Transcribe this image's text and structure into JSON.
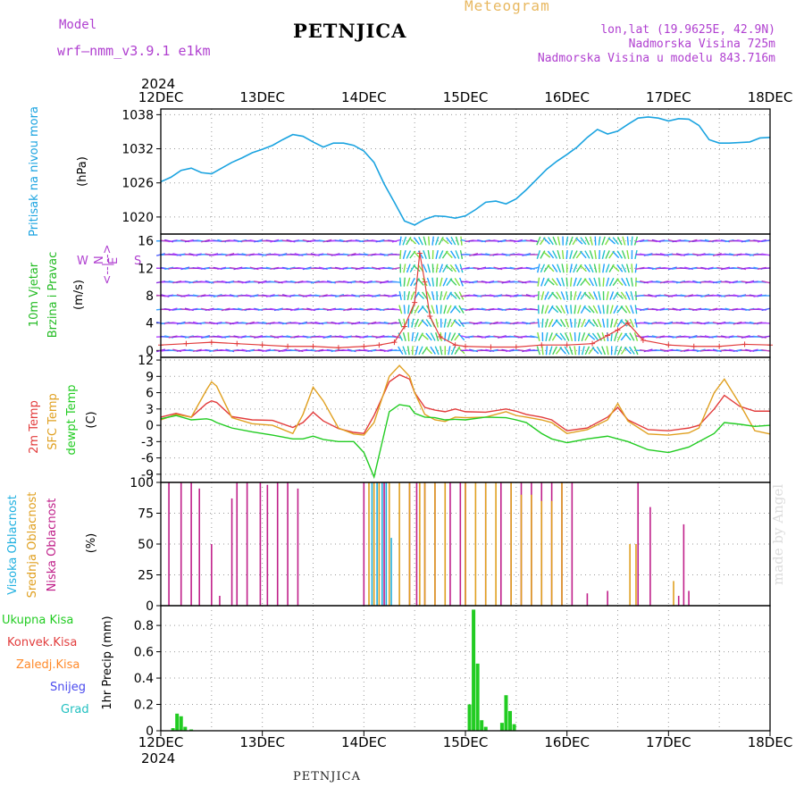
{
  "header": {
    "model_label": "Model",
    "model_name": "wrf–nmm_v3.9.1  e1km",
    "title": "PETNJICA",
    "subtitle": "Meteogram",
    "lonlat": "lon,lat (19.9625E, 42.9N)",
    "altitude": "Nadmorska Visina 725m",
    "model_altitude": "Nadmorska Visina u modelu 843.716m"
  },
  "footer": {
    "station": "PETNJICA",
    "watermark": "made by Angel"
  },
  "colors": {
    "pressure": "#1aa3e0",
    "wind_speed": "#e23c3c",
    "wind_label_green": "#22bb22",
    "temp_2m": "#e23c3c",
    "temp_sfc": "#e0a020",
    "temp_dew": "#22cc22",
    "cloud_high": "#20b0e0",
    "cloud_mid": "#e0a020",
    "cloud_low": "#c0208a",
    "rain_total": "#22cc22",
    "rain_conv": "#e23c3c",
    "rain_frozen": "#ff8a2a",
    "snow": "#4a4aee",
    "hail": "#20c0c0",
    "header_purple": "#b040d0",
    "header_orange": "#e8b860"
  },
  "time_axis": {
    "year": "2024",
    "labels": [
      "12DEC",
      "13DEC",
      "14DEC",
      "15DEC",
      "16DEC",
      "17DEC",
      "18DEC"
    ]
  },
  "chart_data": [
    {
      "type": "line",
      "panel": "pressure",
      "ylabel": "Pritisak na nivou mora",
      "unit": "(hPa)",
      "ylim": [
        1017,
        1039
      ],
      "yticks": [
        "1020",
        "1026",
        "1032",
        "1038"
      ],
      "x_unit": "days from 12DEC 00",
      "series": [
        {
          "x": [
            0,
            0.1,
            0.2,
            0.3,
            0.4,
            0.5,
            0.6,
            0.7,
            0.8,
            0.9,
            1.0,
            1.1,
            1.2,
            1.3,
            1.4,
            1.5,
            1.6,
            1.7,
            1.8,
            1.9,
            2.0,
            2.1,
            2.2,
            2.3,
            2.4,
            2.5,
            2.6,
            2.7,
            2.8,
            2.9,
            3.0,
            3.1,
            3.2,
            3.3,
            3.4,
            3.5,
            3.6,
            3.7,
            3.8,
            3.9,
            4.0,
            4.1,
            4.2,
            4.3,
            4.4,
            4.5,
            4.6,
            4.7,
            4.8,
            4.9,
            5.0,
            5.1,
            5.2,
            5.3,
            5.4,
            5.5,
            5.6,
            5.7,
            5.8,
            5.9,
            6.0
          ],
          "values": [
            1026.2,
            1027.0,
            1028.2,
            1028.6,
            1027.8,
            1027.6,
            1028.6,
            1029.6,
            1030.4,
            1031.3,
            1031.9,
            1032.6,
            1033.6,
            1034.5,
            1034.2,
            1033.2,
            1032.3,
            1033.0,
            1033.0,
            1032.6,
            1031.6,
            1029.6,
            1025.8,
            1022.6,
            1019.3,
            1018.6,
            1019.6,
            1020.2,
            1020.1,
            1019.8,
            1020.2,
            1021.3,
            1022.6,
            1022.8,
            1022.3,
            1023.2,
            1024.8,
            1026.6,
            1028.4,
            1029.8,
            1031.0,
            1032.3,
            1034.0,
            1035.4,
            1034.6,
            1035.1,
            1036.3,
            1037.4,
            1037.6,
            1037.4,
            1036.9,
            1037.3,
            1037.2,
            1036.1,
            1033.6,
            1033.0,
            1033.0,
            1033.1,
            1033.2,
            1033.9,
            1034.0
          ]
        }
      ]
    },
    {
      "type": "line",
      "panel": "wind",
      "ylabel": "10m Vjetar Brzina i Pravac",
      "unit": "(m/s)",
      "ylim": [
        -1,
        17
      ],
      "yticks": [
        "0",
        "4",
        "8",
        "12",
        "16"
      ],
      "compass": [
        "N",
        "<--|-->",
        "E",
        "W",
        "S"
      ],
      "x_unit": "days from 12DEC 00",
      "series": [
        {
          "name": "speed",
          "x": [
            0,
            0.25,
            0.5,
            0.75,
            1.0,
            1.25,
            1.5,
            1.75,
            2.0,
            2.15,
            2.3,
            2.4,
            2.5,
            2.55,
            2.6,
            2.65,
            2.75,
            2.9,
            3.0,
            3.25,
            3.5,
            3.75,
            4.0,
            4.25,
            4.4,
            4.5,
            4.6,
            4.75,
            5.0,
            5.25,
            5.5,
            5.75,
            6.0
          ],
          "values": [
            0.8,
            1.0,
            1.2,
            1.0,
            0.8,
            0.6,
            0.6,
            0.4,
            0.6,
            0.8,
            1.2,
            3.5,
            7.0,
            14.2,
            10.0,
            5.0,
            2.0,
            0.8,
            0.6,
            0.5,
            0.5,
            0.8,
            0.8,
            1.0,
            2.2,
            3.0,
            4.0,
            1.5,
            0.8,
            0.6,
            0.6,
            0.9,
            0.8
          ]
        }
      ]
    },
    {
      "type": "line",
      "panel": "temperature",
      "ylabel": [
        "2m Temp",
        "SFC Temp",
        "dewpt Temp"
      ],
      "unit": "(C)",
      "ylim": [
        -10.5,
        12.5
      ],
      "yticks": [
        "-9",
        "-6",
        "-3",
        "0",
        "3",
        "6",
        "9",
        "12"
      ],
      "x": [
        0,
        0.15,
        0.3,
        0.45,
        0.5,
        0.55,
        0.7,
        0.9,
        1.1,
        1.3,
        1.4,
        1.5,
        1.6,
        1.75,
        1.9,
        2.0,
        2.1,
        2.25,
        2.35,
        2.45,
        2.5,
        2.6,
        2.7,
        2.8,
        2.9,
        3.0,
        3.2,
        3.4,
        3.5,
        3.6,
        3.75,
        3.85,
        4.0,
        4.2,
        4.4,
        4.5,
        4.6,
        4.8,
        5.0,
        5.2,
        5.3,
        5.45,
        5.55,
        5.7,
        5.85,
        6.0
      ],
      "series": [
        {
          "name": "2m",
          "values": [
            1.5,
            2.2,
            1.5,
            4.0,
            4.5,
            4.2,
            1.6,
            1.0,
            0.9,
            -0.4,
            0.5,
            2.4,
            0.8,
            -0.6,
            -1.3,
            -1.5,
            1.8,
            8.0,
            9.3,
            8.5,
            6.0,
            3.3,
            2.8,
            2.5,
            3.0,
            2.5,
            2.4,
            3.0,
            2.6,
            2.0,
            1.5,
            1.0,
            -1.0,
            -0.5,
            1.5,
            3.3,
            1.0,
            -0.8,
            -1.0,
            -0.5,
            0.0,
            3.0,
            5.5,
            3.5,
            2.6,
            2.6
          ]
        },
        {
          "name": "sfc",
          "values": [
            1.0,
            2.0,
            1.5,
            6.5,
            8.0,
            7.2,
            1.4,
            0.3,
            0.0,
            -1.5,
            2.0,
            7.0,
            4.5,
            -0.5,
            -1.6,
            -1.8,
            0.5,
            9.0,
            11.0,
            9.0,
            6.0,
            2.0,
            1.0,
            0.7,
            1.5,
            1.4,
            1.5,
            2.5,
            1.8,
            1.5,
            1.0,
            0.5,
            -1.5,
            -0.8,
            1.0,
            4.0,
            0.8,
            -1.6,
            -1.8,
            -1.4,
            -0.5,
            6.0,
            8.5,
            4.0,
            -1.0,
            -1.6
          ]
        },
        {
          "name": "dew",
          "values": [
            1.2,
            1.8,
            1.0,
            1.2,
            1.0,
            0.5,
            -0.5,
            -1.2,
            -1.8,
            -2.5,
            -2.5,
            -2.0,
            -2.6,
            -3.0,
            -3.0,
            -5.0,
            -9.5,
            2.5,
            3.8,
            3.5,
            2.2,
            1.5,
            1.4,
            1.0,
            1.1,
            1.0,
            1.5,
            1.4,
            1.0,
            0.5,
            -1.5,
            -2.5,
            -3.2,
            -2.5,
            -2.0,
            -2.5,
            -3.0,
            -4.5,
            -5.0,
            -4.0,
            -3.0,
            -1.5,
            0.5,
            0.2,
            -0.2,
            0.0
          ]
        }
      ]
    },
    {
      "type": "bar",
      "panel": "cloud",
      "ylabel": [
        "Visoka Oblacnost",
        "Srednja Oblacnost",
        "Niska Oblacnost"
      ],
      "unit": "(%)",
      "ylim": [
        0,
        100
      ],
      "yticks": [
        "0",
        "25",
        "50",
        "75",
        "100"
      ],
      "series": [
        {
          "name": "low",
          "x": [
            0.08,
            0.2,
            0.3,
            0.38,
            0.5,
            0.58,
            0.7,
            0.75,
            0.85,
            0.98,
            1.05,
            1.15,
            1.25,
            1.35,
            2.0,
            2.2,
            2.45,
            2.52,
            2.6,
            2.7,
            2.85,
            2.95,
            3.0,
            3.2,
            3.35,
            3.45,
            3.55,
            3.65,
            3.75,
            3.85,
            3.95,
            4.05,
            4.2,
            4.4,
            4.7,
            4.82,
            5.1,
            5.15,
            5.2
          ],
          "values": [
            100,
            100,
            100,
            95,
            50,
            8,
            87,
            100,
            100,
            100,
            98,
            100,
            100,
            95,
            100,
            100,
            100,
            100,
            100,
            100,
            100,
            100,
            100,
            100,
            100,
            100,
            100,
            100,
            100,
            100,
            100,
            100,
            10,
            12,
            100,
            80,
            8,
            66,
            12
          ]
        },
        {
          "name": "mid",
          "x": [
            2.05,
            2.1,
            2.15,
            2.25,
            2.35,
            2.45,
            2.55,
            2.6,
            2.7,
            2.8,
            3.0,
            3.1,
            3.2,
            3.3,
            3.45,
            3.55,
            3.65,
            3.75,
            3.85,
            3.95,
            4.62,
            4.68,
            5.05
          ],
          "values": [
            100,
            100,
            100,
            100,
            100,
            100,
            100,
            100,
            100,
            100,
            100,
            100,
            100,
            100,
            100,
            90,
            90,
            85,
            85,
            100,
            50,
            50,
            20
          ]
        },
        {
          "name": "high",
          "x": [
            2.08,
            2.13,
            2.18,
            2.22,
            2.27
          ],
          "values": [
            100,
            100,
            100,
            100,
            55
          ]
        }
      ]
    },
    {
      "type": "bar",
      "panel": "precipitation",
      "ylabel": "1hr Precip",
      "unit": "(mm)",
      "ylim": [
        0,
        0.95
      ],
      "yticks": [
        "0",
        "0.2",
        "0.4",
        "0.6",
        "0.8"
      ],
      "legend": [
        "Ukupna  Kisa",
        "Konvek.Kisa",
        "Zaledj.Kisa",
        "Snijeg",
        "Grad"
      ],
      "series": [
        {
          "name": "total",
          "x": [
            0.12,
            0.16,
            0.2,
            0.24,
            0.3,
            3.04,
            3.08,
            3.12,
            3.16,
            3.2,
            3.36,
            3.4,
            3.44,
            3.48
          ],
          "values": [
            0.02,
            0.13,
            0.11,
            0.03,
            0.01,
            0.2,
            0.92,
            0.51,
            0.08,
            0.03,
            0.06,
            0.27,
            0.15,
            0.05
          ]
        }
      ]
    }
  ]
}
